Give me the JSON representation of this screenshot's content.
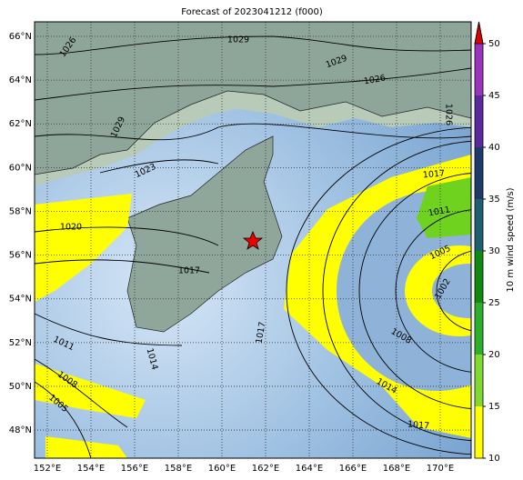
{
  "title": "Forecast of 2023041212 (f000)",
  "map": {
    "lon_ticks": [
      {
        "value": 152,
        "label": "152°E"
      },
      {
        "value": 154,
        "label": "154°E"
      },
      {
        "value": 156,
        "label": "156°E"
      },
      {
        "value": 158,
        "label": "158°E"
      },
      {
        "value": 160,
        "label": "160°E"
      },
      {
        "value": 162,
        "label": "162°E"
      },
      {
        "value": 164,
        "label": "164°E"
      },
      {
        "value": 166,
        "label": "166°E"
      },
      {
        "value": 168,
        "label": "168°E"
      },
      {
        "value": 170,
        "label": "170°E"
      }
    ],
    "lat_ticks": [
      {
        "value": 66,
        "label": "66°N"
      },
      {
        "value": 64,
        "label": "64°N"
      },
      {
        "value": 62,
        "label": "62°N"
      },
      {
        "value": 60,
        "label": "60°N"
      },
      {
        "value": 58,
        "label": "58°N"
      },
      {
        "value": 56,
        "label": "56°N"
      },
      {
        "value": 54,
        "label": "54°N"
      },
      {
        "value": 52,
        "label": "52°N"
      },
      {
        "value": 50,
        "label": "50°N"
      },
      {
        "value": 48,
        "label": "48°N"
      }
    ],
    "contour_labels": [
      1026,
      1029,
      1029,
      1026,
      1029,
      1026,
      1023,
      1017,
      1011,
      1020,
      1005,
      1002,
      1017,
      1017,
      1008,
      1011,
      1014,
      1008,
      1014,
      1005,
      1017
    ]
  },
  "colorbar": {
    "label": "10 m wind speed (m/s)",
    "lim": [
      10,
      50
    ],
    "ticks": [
      10,
      15,
      20,
      25,
      30,
      35,
      40,
      45,
      50
    ],
    "colors": [
      "#ffff00",
      "#80d830",
      "#2cb02c",
      "#128a12",
      "#1f6070",
      "#1e3a68",
      "#5a2a9c",
      "#9a34bc"
    ],
    "extend_color": "#e00000"
  }
}
